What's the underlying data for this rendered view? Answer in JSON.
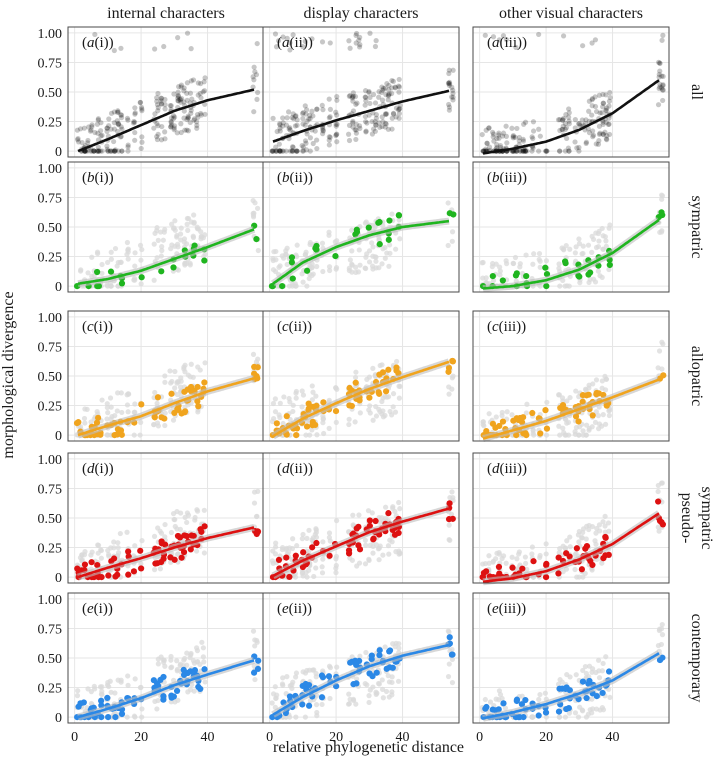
{
  "figure": {
    "xlabel": "relative phylogenetic distance",
    "ylabel": "morphological divergence",
    "columns": [
      "internal characters",
      "display characters",
      "other visual characters"
    ],
    "rows": [
      {
        "lines": [
          "all"
        ]
      },
      {
        "lines": [
          "sympatric"
        ]
      },
      {
        "lines": [
          "allopatric"
        ]
      },
      {
        "lines": [
          "pseudo-",
          "sympatric"
        ]
      },
      {
        "lines": [
          "contemporary"
        ]
      }
    ],
    "row_letters": [
      "a",
      "b",
      "c",
      "d",
      "e"
    ],
    "col_numerals": [
      "i",
      "ii",
      "iii"
    ],
    "colors": {
      "all": "#111111",
      "sympatric": "#1fb51f",
      "allopatric": "#f0a41e",
      "pseudo-sympatric": "#dd1111",
      "contemporary": "#2b88e6",
      "background_points": "#d9d9d9",
      "grid": "#e6e6e6",
      "panel_border": "#4a4a4a"
    }
  },
  "chart_data": {
    "type": "scatter",
    "panels": "5 rows x 3 columns; each panel shows scatter points with a fitted curve",
    "x_ticks": [
      0,
      20,
      40
    ],
    "y_ticks": [
      0,
      0.25,
      0.5,
      0.75,
      1.0
    ],
    "y_tick_labels": [
      "0",
      "0.25",
      "0.50",
      "0.75",
      "1.00"
    ],
    "xlim": [
      -2,
      57
    ],
    "ylim": [
      -0.05,
      1.05
    ],
    "grid": true,
    "x_groups": [
      1,
      2,
      3,
      4,
      5,
      6,
      7,
      8,
      10,
      11,
      12,
      13,
      14,
      16,
      18,
      20,
      24,
      25,
      26,
      27,
      29,
      30,
      31,
      32,
      33,
      34,
      35,
      36,
      37,
      38,
      39,
      54,
      55
    ],
    "fits": [
      [
        {
          "x": 1,
          "y": 0.0
        },
        {
          "x": 10,
          "y": 0.1
        },
        {
          "x": 20,
          "y": 0.22
        },
        {
          "x": 30,
          "y": 0.34
        },
        {
          "x": 40,
          "y": 0.43
        },
        {
          "x": 54,
          "y": 0.52
        }
      ],
      [
        {
          "x": 1,
          "y": 0.08
        },
        {
          "x": 10,
          "y": 0.17
        },
        {
          "x": 20,
          "y": 0.26
        },
        {
          "x": 30,
          "y": 0.34
        },
        {
          "x": 40,
          "y": 0.42
        },
        {
          "x": 54,
          "y": 0.51
        }
      ],
      [
        {
          "x": 1,
          "y": -0.02
        },
        {
          "x": 10,
          "y": 0.02
        },
        {
          "x": 20,
          "y": 0.08
        },
        {
          "x": 30,
          "y": 0.18
        },
        {
          "x": 40,
          "y": 0.32
        },
        {
          "x": 54,
          "y": 0.6
        }
      ],
      [
        {
          "x": 1,
          "y": 0.02
        },
        {
          "x": 10,
          "y": 0.06
        },
        {
          "x": 20,
          "y": 0.13
        },
        {
          "x": 30,
          "y": 0.23
        },
        {
          "x": 40,
          "y": 0.33
        },
        {
          "x": 54,
          "y": 0.48
        }
      ],
      [
        {
          "x": 1,
          "y": 0.02
        },
        {
          "x": 10,
          "y": 0.2
        },
        {
          "x": 20,
          "y": 0.33
        },
        {
          "x": 30,
          "y": 0.43
        },
        {
          "x": 40,
          "y": 0.5
        },
        {
          "x": 54,
          "y": 0.55
        }
      ],
      [
        {
          "x": 1,
          "y": -0.02
        },
        {
          "x": 10,
          "y": 0.0
        },
        {
          "x": 20,
          "y": 0.05
        },
        {
          "x": 30,
          "y": 0.14
        },
        {
          "x": 40,
          "y": 0.28
        },
        {
          "x": 54,
          "y": 0.56
        }
      ],
      [
        {
          "x": 1,
          "y": 0.0
        },
        {
          "x": 10,
          "y": 0.08
        },
        {
          "x": 20,
          "y": 0.16
        },
        {
          "x": 30,
          "y": 0.27
        },
        {
          "x": 40,
          "y": 0.37
        },
        {
          "x": 54,
          "y": 0.48
        }
      ],
      [
        {
          "x": 1,
          "y": -0.01
        },
        {
          "x": 10,
          "y": 0.14
        },
        {
          "x": 20,
          "y": 0.27
        },
        {
          "x": 30,
          "y": 0.39
        },
        {
          "x": 40,
          "y": 0.49
        },
        {
          "x": 54,
          "y": 0.62
        }
      ],
      [
        {
          "x": 1,
          "y": -0.03
        },
        {
          "x": 10,
          "y": 0.04
        },
        {
          "x": 20,
          "y": 0.12
        },
        {
          "x": 30,
          "y": 0.22
        },
        {
          "x": 40,
          "y": 0.32
        },
        {
          "x": 54,
          "y": 0.47
        }
      ],
      [
        {
          "x": 1,
          "y": 0.0
        },
        {
          "x": 10,
          "y": 0.08
        },
        {
          "x": 20,
          "y": 0.16
        },
        {
          "x": 30,
          "y": 0.25
        },
        {
          "x": 40,
          "y": 0.33
        },
        {
          "x": 54,
          "y": 0.42
        }
      ],
      [
        {
          "x": 1,
          "y": 0.01
        },
        {
          "x": 10,
          "y": 0.14
        },
        {
          "x": 20,
          "y": 0.26
        },
        {
          "x": 30,
          "y": 0.38
        },
        {
          "x": 40,
          "y": 0.47
        },
        {
          "x": 54,
          "y": 0.58
        }
      ],
      [
        {
          "x": 1,
          "y": -0.04
        },
        {
          "x": 10,
          "y": -0.01
        },
        {
          "x": 20,
          "y": 0.05
        },
        {
          "x": 30,
          "y": 0.15
        },
        {
          "x": 40,
          "y": 0.28
        },
        {
          "x": 54,
          "y": 0.54
        }
      ],
      [
        {
          "x": 1,
          "y": 0.0
        },
        {
          "x": 10,
          "y": 0.07
        },
        {
          "x": 20,
          "y": 0.16
        },
        {
          "x": 30,
          "y": 0.27
        },
        {
          "x": 40,
          "y": 0.36
        },
        {
          "x": 54,
          "y": 0.48
        }
      ],
      [
        {
          "x": 1,
          "y": 0.02
        },
        {
          "x": 10,
          "y": 0.17
        },
        {
          "x": 20,
          "y": 0.31
        },
        {
          "x": 30,
          "y": 0.43
        },
        {
          "x": 40,
          "y": 0.52
        },
        {
          "x": 54,
          "y": 0.61
        }
      ],
      [
        {
          "x": 1,
          "y": -0.01
        },
        {
          "x": 10,
          "y": 0.04
        },
        {
          "x": 20,
          "y": 0.11
        },
        {
          "x": 30,
          "y": 0.2
        },
        {
          "x": 40,
          "y": 0.31
        },
        {
          "x": 54,
          "y": 0.54
        }
      ]
    ]
  }
}
